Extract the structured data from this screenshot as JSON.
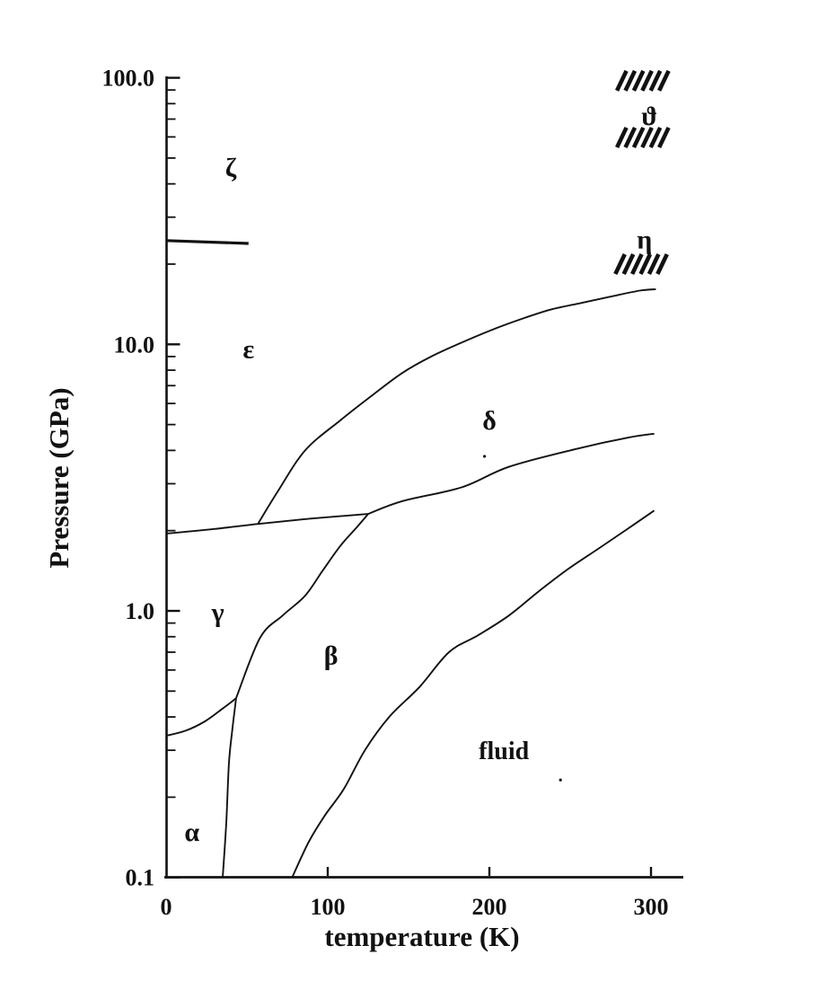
{
  "figure": {
    "title": "",
    "background_color": "#ffffff",
    "ink_color": "#121212",
    "x_axis": {
      "label": "temperature (K)",
      "unit": "K",
      "scale": "linear",
      "range": [
        0,
        320
      ],
      "major_ticks": [
        {
          "value": 0,
          "label": "0"
        },
        {
          "value": 100,
          "label": "100"
        },
        {
          "value": 200,
          "label": "200"
        },
        {
          "value": 300,
          "label": "300"
        }
      ]
    },
    "y_axis": {
      "label": "Pressure (GPa)",
      "unit": "GPa",
      "scale": "log",
      "range": [
        0.1,
        100
      ],
      "major_ticks": [
        {
          "value": 100,
          "label": "100.0"
        },
        {
          "value": 10,
          "label": "10.0"
        },
        {
          "value": 1,
          "label": "1.0"
        },
        {
          "value": 0.1,
          "label": "0.1"
        }
      ],
      "minor_tick_values": [
        0.2,
        0.3,
        0.4,
        0.5,
        0.6,
        0.7,
        0.8,
        0.9,
        2,
        3,
        4,
        5,
        6,
        7,
        8,
        9,
        20,
        30,
        40,
        50,
        60,
        70,
        80,
        90
      ]
    }
  },
  "chart_data": {
    "type": "line",
    "title": "",
    "xlabel": "temperature (K)",
    "ylabel": "Pressure (GPa)",
    "x_range": [
      0,
      320
    ],
    "y_range": [
      0.1,
      100
    ],
    "y_scale": "log",
    "grid": false,
    "legend": "none",
    "boundaries": [
      {
        "name": "alpha-beta",
        "points_T_P": [
          [
            35,
            0.1
          ],
          [
            37.2,
            0.16
          ],
          [
            38.9,
            0.27
          ],
          [
            41,
            0.36
          ],
          [
            43.3,
            0.47
          ]
        ]
      },
      {
        "name": "alpha-gamma",
        "points_T_P": [
          [
            0,
            0.34
          ],
          [
            12,
            0.355
          ],
          [
            24,
            0.385
          ],
          [
            35,
            0.43
          ],
          [
            43.3,
            0.47
          ]
        ]
      },
      {
        "name": "gamma-beta",
        "points_T_P": [
          [
            43.3,
            0.47
          ],
          [
            58,
            0.79
          ],
          [
            72,
            0.96
          ],
          [
            86,
            1.14
          ],
          [
            97,
            1.42
          ],
          [
            108,
            1.76
          ],
          [
            118,
            2.06
          ],
          [
            125,
            2.31
          ]
        ]
      },
      {
        "name": "gamma-epsilon-delta",
        "points_T_P": [
          [
            0,
            1.95
          ],
          [
            30,
            2.03
          ],
          [
            57,
            2.12
          ],
          [
            90,
            2.22
          ],
          [
            125,
            2.31
          ]
        ]
      },
      {
        "name": "epsilon-delta",
        "points_T_P": [
          [
            57,
            2.13
          ],
          [
            69,
            2.8
          ],
          [
            86,
            4.0
          ],
          [
            108,
            5.2
          ],
          [
            127,
            6.4
          ],
          [
            146,
            7.8
          ],
          [
            164,
            9.0
          ],
          [
            182,
            10.1
          ],
          [
            201,
            11.3
          ],
          [
            219,
            12.4
          ],
          [
            238,
            13.5
          ],
          [
            257,
            14.3
          ],
          [
            275,
            15.1
          ],
          [
            293,
            15.9
          ],
          [
            303,
            16.1
          ]
        ]
      },
      {
        "name": "beta-delta",
        "points_T_P": [
          [
            125,
            2.31
          ],
          [
            146,
            2.58
          ],
          [
            183,
            2.91
          ],
          [
            212,
            3.47
          ],
          [
            253,
            4.04
          ],
          [
            286,
            4.47
          ],
          [
            302,
            4.62
          ]
        ]
      },
      {
        "name": "beta-fluid-melting",
        "points_T_P": [
          [
            78,
            0.1
          ],
          [
            88,
            0.135
          ],
          [
            98,
            0.17
          ],
          [
            110,
            0.215
          ],
          [
            123,
            0.3
          ],
          [
            138,
            0.4
          ],
          [
            157,
            0.52
          ],
          [
            175,
            0.7
          ],
          [
            193,
            0.81
          ],
          [
            212,
            0.96
          ],
          [
            231,
            1.19
          ],
          [
            249,
            1.44
          ],
          [
            268,
            1.72
          ],
          [
            286,
            2.04
          ],
          [
            302,
            2.38
          ]
        ]
      },
      {
        "name": "epsilon-zeta",
        "points_T_P": [
          [
            0,
            24.5
          ],
          [
            51,
            23.9
          ]
        ]
      }
    ],
    "phase_labels": [
      {
        "name": "zeta",
        "text": "ζ",
        "T": 40,
        "P": 46
      },
      {
        "name": "epsilon",
        "text": "ε",
        "T": 51,
        "P": 9.6
      },
      {
        "name": "gamma",
        "text": "γ",
        "T": 32,
        "P": 0.99
      },
      {
        "name": "alpha",
        "text": "α",
        "T": 16,
        "P": 0.148
      },
      {
        "name": "beta",
        "text": "β",
        "T": 102,
        "P": 0.68
      },
      {
        "name": "delta",
        "text": "δ",
        "T": 200,
        "P": 5.18
      },
      {
        "name": "fluid",
        "text": "fluid",
        "T": 209,
        "P": 0.3
      },
      {
        "name": "eta",
        "text": "η",
        "T": 296,
        "P": 24.8
      },
      {
        "name": "theta",
        "text": "ϑ",
        "T": 299,
        "P": 72
      }
    ],
    "hatch_marks": [
      {
        "name": "hatch-above-theta",
        "T": 292,
        "P": 97.5,
        "strokes": 6
      },
      {
        "name": "hatch-below-theta",
        "T": 292,
        "P": 59.7,
        "strokes": 6
      },
      {
        "name": "hatch-below-eta",
        "T": 291,
        "P": 20.0,
        "strokes": 6
      }
    ],
    "specks": [
      {
        "T": 197,
        "P": 3.8
      },
      {
        "T": 244,
        "P": 0.232
      }
    ]
  }
}
